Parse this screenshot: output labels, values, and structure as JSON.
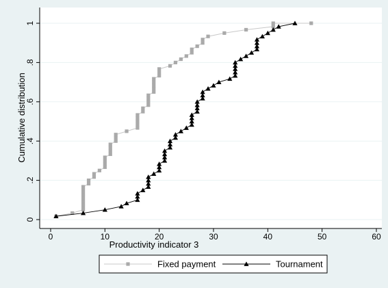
{
  "chart_data": {
    "type": "line",
    "title": "",
    "xlabel": "Productivity indicator 3",
    "ylabel": "Cumulative distribution",
    "xlim": [
      0,
      60
    ],
    "ylim": [
      0,
      1
    ],
    "x_ticks": [
      0,
      10,
      20,
      30,
      40,
      50,
      60
    ],
    "x_tick_labels": [
      "0",
      "10",
      "20",
      "30",
      "40",
      "50",
      "60"
    ],
    "y_ticks": [
      0,
      0.2,
      0.4,
      0.6,
      0.8,
      1
    ],
    "y_tick_labels": [
      "0",
      ".2",
      ".4",
      ".6",
      ".8",
      "1"
    ],
    "grid": true,
    "legend_position": "bottom",
    "series": [
      {
        "name": "Fixed payment",
        "marker": "square",
        "color": "#aaaaaa",
        "line_color": "#c8c8c8",
        "points": [
          [
            1,
            0.017
          ],
          [
            4,
            0.033
          ],
          [
            6,
            0.05
          ],
          [
            6,
            0.067
          ],
          [
            6,
            0.083
          ],
          [
            6,
            0.1
          ],
          [
            6,
            0.117
          ],
          [
            6,
            0.133
          ],
          [
            6,
            0.15
          ],
          [
            6,
            0.167
          ],
          [
            7,
            0.183
          ],
          [
            7,
            0.2
          ],
          [
            8,
            0.217
          ],
          [
            8,
            0.233
          ],
          [
            9,
            0.25
          ],
          [
            10,
            0.267
          ],
          [
            10,
            0.283
          ],
          [
            10,
            0.3
          ],
          [
            10,
            0.317
          ],
          [
            11,
            0.333
          ],
          [
            11,
            0.35
          ],
          [
            11,
            0.367
          ],
          [
            11,
            0.383
          ],
          [
            12,
            0.4
          ],
          [
            12,
            0.417
          ],
          [
            12,
            0.433
          ],
          [
            14,
            0.45
          ],
          [
            16,
            0.467
          ],
          [
            16,
            0.483
          ],
          [
            16,
            0.5
          ],
          [
            16,
            0.517
          ],
          [
            16,
            0.533
          ],
          [
            17,
            0.55
          ],
          [
            17,
            0.567
          ],
          [
            18,
            0.583
          ],
          [
            18,
            0.6
          ],
          [
            18,
            0.617
          ],
          [
            18,
            0.633
          ],
          [
            19,
            0.65
          ],
          [
            19,
            0.667
          ],
          [
            19,
            0.683
          ],
          [
            19,
            0.7
          ],
          [
            19,
            0.717
          ],
          [
            20,
            0.733
          ],
          [
            20,
            0.75
          ],
          [
            20,
            0.767
          ],
          [
            22,
            0.783
          ],
          [
            23,
            0.8
          ],
          [
            24,
            0.817
          ],
          [
            25,
            0.833
          ],
          [
            26,
            0.85
          ],
          [
            26,
            0.867
          ],
          [
            27,
            0.883
          ],
          [
            28,
            0.9
          ],
          [
            28,
            0.917
          ],
          [
            29,
            0.933
          ],
          [
            32,
            0.95
          ],
          [
            36,
            0.967
          ],
          [
            41,
            0.983
          ],
          [
            41,
            1.0
          ],
          [
            48,
            1.0
          ]
        ]
      },
      {
        "name": "Tournament",
        "marker": "triangle",
        "color": "#000000",
        "line_color": "#000000",
        "points": [
          [
            1,
            0.017
          ],
          [
            6,
            0.033
          ],
          [
            10,
            0.05
          ],
          [
            13,
            0.067
          ],
          [
            14,
            0.083
          ],
          [
            16,
            0.1
          ],
          [
            16,
            0.117
          ],
          [
            16,
            0.133
          ],
          [
            17,
            0.15
          ],
          [
            18,
            0.167
          ],
          [
            18,
            0.183
          ],
          [
            18,
            0.2
          ],
          [
            18,
            0.217
          ],
          [
            19,
            0.233
          ],
          [
            20,
            0.25
          ],
          [
            20,
            0.267
          ],
          [
            20,
            0.283
          ],
          [
            21,
            0.3
          ],
          [
            21,
            0.317
          ],
          [
            21,
            0.333
          ],
          [
            21,
            0.35
          ],
          [
            22,
            0.367
          ],
          [
            22,
            0.383
          ],
          [
            22,
            0.4
          ],
          [
            23,
            0.417
          ],
          [
            23,
            0.433
          ],
          [
            24,
            0.45
          ],
          [
            25,
            0.467
          ],
          [
            26,
            0.483
          ],
          [
            26,
            0.5
          ],
          [
            26,
            0.517
          ],
          [
            26,
            0.533
          ],
          [
            27,
            0.55
          ],
          [
            27,
            0.567
          ],
          [
            27,
            0.583
          ],
          [
            27,
            0.6
          ],
          [
            28,
            0.617
          ],
          [
            28,
            0.633
          ],
          [
            28,
            0.65
          ],
          [
            29,
            0.667
          ],
          [
            30,
            0.683
          ],
          [
            31,
            0.7
          ],
          [
            33,
            0.717
          ],
          [
            34,
            0.733
          ],
          [
            34,
            0.75
          ],
          [
            34,
            0.767
          ],
          [
            34,
            0.783
          ],
          [
            34,
            0.8
          ],
          [
            35,
            0.817
          ],
          [
            36,
            0.833
          ],
          [
            37,
            0.85
          ],
          [
            38,
            0.867
          ],
          [
            38,
            0.883
          ],
          [
            38,
            0.9
          ],
          [
            38,
            0.917
          ],
          [
            39,
            0.933
          ],
          [
            40,
            0.95
          ],
          [
            41,
            0.967
          ],
          [
            42,
            0.983
          ],
          [
            45,
            1.0
          ]
        ]
      }
    ]
  }
}
